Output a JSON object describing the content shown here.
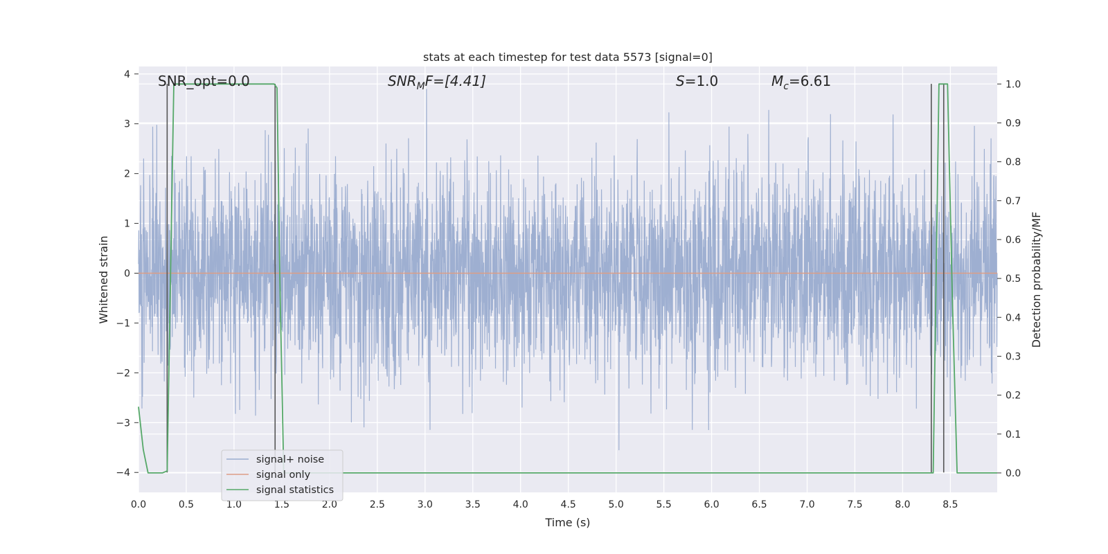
{
  "chart_data": {
    "type": "line",
    "title": "stats at each timestep for test data 5573 [signal=0]",
    "xlabel": "Time (s)",
    "ylabel_left": "Whitened strain",
    "ylabel_right": "Detection probability/MF",
    "xlim": [
      0.0,
      8.99
    ],
    "ylim_left": [
      -4.4,
      4.15
    ],
    "ylim_right": [
      -0.05,
      1.045
    ],
    "xticks": [
      0.0,
      0.5,
      1.0,
      1.5,
      2.0,
      2.5,
      3.0,
      3.5,
      4.0,
      4.5,
      5.0,
      5.5,
      6.0,
      6.5,
      7.0,
      7.5,
      8.0,
      8.5
    ],
    "xtick_labels": [
      "0.0",
      "0.5",
      "1.0",
      "1.5",
      "2.0",
      "2.5",
      "3.0",
      "3.5",
      "4.0",
      "4.5",
      "5.0",
      "5.5",
      "6.0",
      "6.5",
      "7.0",
      "7.5",
      "8.0",
      "8.5"
    ],
    "yticks_left": [
      -4,
      -3,
      -2,
      -1,
      0,
      1,
      2,
      3,
      4
    ],
    "ytick_labels_left": [
      "−4",
      "−3",
      "−2",
      "−1",
      "0",
      "1",
      "2",
      "3",
      "4"
    ],
    "yticks_right": [
      0.0,
      0.1,
      0.2,
      0.3,
      0.4,
      0.5,
      0.6,
      0.7,
      0.8,
      0.9,
      1.0
    ],
    "ytick_labels_right": [
      "0.0",
      "0.1",
      "0.2",
      "0.3",
      "0.4",
      "0.5",
      "0.6",
      "0.7",
      "0.8",
      "0.9",
      "1.0"
    ],
    "grid": true,
    "legend_placement": "lower-left",
    "annotations": {
      "snr_opt": "SNR_opt=0.0",
      "snr_mf_base": "SNR",
      "snr_mf_sub": "M",
      "snr_mf_rest": "F=[4.41]",
      "s_var": "S",
      "s_rest": "=1.0",
      "mc_var": "M",
      "mc_sub": "c",
      "mc_rest": "=6.61"
    },
    "series": [
      {
        "name": "signal+ noise",
        "color": "#9aaccf",
        "axis": "left",
        "description_values": "dense whitened noise, approx within [-3.7, 3.7]",
        "seed": 5573
      },
      {
        "name": "signal only",
        "color": "#dd9d86",
        "axis": "left",
        "x": [
          0.0,
          8.99
        ],
        "y": [
          0.0,
          0.0
        ]
      },
      {
        "name": "signal statistics",
        "color": "#55a868",
        "axis": "right",
        "x": [
          0.0,
          0.05,
          0.1,
          0.2,
          0.25,
          0.3,
          0.37,
          0.4,
          1.0,
          1.3,
          1.42,
          1.45,
          1.48,
          1.52,
          1.6,
          2.0,
          4.0,
          6.0,
          8.0,
          8.25,
          8.32,
          8.38,
          8.47,
          8.52,
          8.57,
          8.6,
          8.99
        ],
        "y": [
          0.17,
          0.06,
          0.0,
          0.0,
          0.0,
          0.005,
          1.0,
          1.0,
          1.0,
          1.0,
          1.0,
          0.99,
          0.5,
          0.0,
          0.0,
          0.0,
          0.0,
          0.0,
          0.0,
          0.0,
          0.0,
          1.0,
          1.0,
          0.45,
          0.0,
          0.0,
          0.0
        ]
      }
    ],
    "vlines": [
      {
        "x": 0.3,
        "ymin": -4.0,
        "ymax": 3.8,
        "color": "#555555"
      },
      {
        "x": 1.43,
        "ymin": -4.0,
        "ymax": 3.8,
        "color": "#555555"
      },
      {
        "x": 8.3,
        "ymin": -4.0,
        "ymax": 3.8,
        "color": "#555555"
      },
      {
        "x": 8.43,
        "ymin": -4.0,
        "ymax": 3.8,
        "color": "#555555"
      }
    ]
  }
}
